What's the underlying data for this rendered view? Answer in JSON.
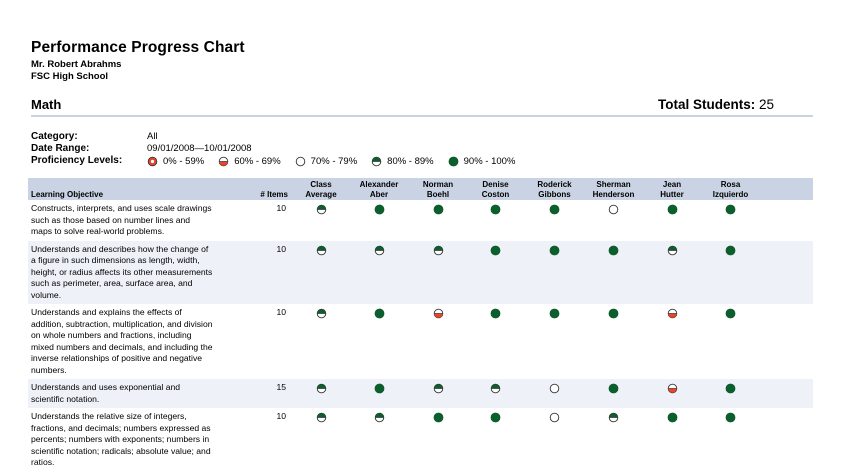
{
  "report": {
    "title": "Performance Progress Chart",
    "teacher": "Mr. Robert Abrahms",
    "school": "FSC High School",
    "subject": "Math",
    "total_label": "Total Students:",
    "total_value": "25"
  },
  "filters": {
    "category_label": "Category:",
    "category_value": "All",
    "date_label": "Date Range:",
    "date_value": "09/01/2008—10/01/2008",
    "levels_label": "Proficiency Levels:"
  },
  "levels": [
    {
      "label": "0% - 59%",
      "level": "l0"
    },
    {
      "label": "60% - 69%",
      "level": "l1"
    },
    {
      "label": "70% - 79%",
      "level": "l2"
    },
    {
      "label": "80% - 89%",
      "level": "l3"
    },
    {
      "label": "90% - 100%",
      "level": "l4"
    }
  ],
  "colors": {
    "red": "#e8452b",
    "green": "#0d5e2d",
    "header_bg": "#c9d3e3",
    "alt_row": "#eef2f8"
  },
  "table": {
    "obj_header": "Learning Objective",
    "items_header": "# Items",
    "columns": [
      [
        "Class",
        "Average"
      ],
      [
        "Alexander",
        "Aber"
      ],
      [
        "Norman",
        "Boehl"
      ],
      [
        "Denise",
        "Coston"
      ],
      [
        "Roderick",
        "Gibbons"
      ],
      [
        "Sherman",
        "Henderson"
      ],
      [
        "Jean",
        "Hutter"
      ],
      [
        "Rosa",
        "Izquierdo"
      ]
    ],
    "rows": [
      {
        "lines": [
          "Constructs, interprets, and uses scale drawings",
          "such as those based on number lines and",
          "maps to solve real-world problems."
        ],
        "items": "10",
        "levels": [
          "l3",
          "l4",
          "l4",
          "l4",
          "l4",
          "l2",
          "l4",
          "l4"
        ]
      },
      {
        "lines": [
          "Understands and describes how the change of",
          "a figure in such dimensions as length, width,",
          "height, or radius affects its other measurements",
          "such as perimeter, area, surface area, and",
          "volume."
        ],
        "items": "10",
        "levels": [
          "l3",
          "l3",
          "l3",
          "l4",
          "l4",
          "l4",
          "l3",
          "l4"
        ]
      },
      {
        "lines": [
          "Understands and explains the effects of",
          "addition, subtraction, multiplication, and division",
          "on whole numbers and fractions, including",
          "mixed numbers and decimals, and including the",
          "inverse relationships of positive and negative",
          "numbers."
        ],
        "items": "10",
        "levels": [
          "l3",
          "l4",
          "l1",
          "l4",
          "l4",
          "l4",
          "l1",
          "l4"
        ]
      },
      {
        "lines": [
          "Understands and uses exponential and",
          "scientific notation."
        ],
        "items": "15",
        "levels": [
          "l3",
          "l4",
          "l3",
          "l3",
          "l2",
          "l4",
          "l1",
          "l4"
        ]
      },
      {
        "lines": [
          "Understands the relative size of integers,",
          "fractions, and decimals; numbers expressed as",
          "percents; numbers with exponents; numbers in",
          "scientific notation; radicals; absolute value; and",
          "ratios."
        ],
        "items": "10",
        "levels": [
          "l3",
          "l3",
          "l4",
          "l4",
          "l2",
          "l3",
          "l4",
          "l4"
        ]
      }
    ]
  }
}
